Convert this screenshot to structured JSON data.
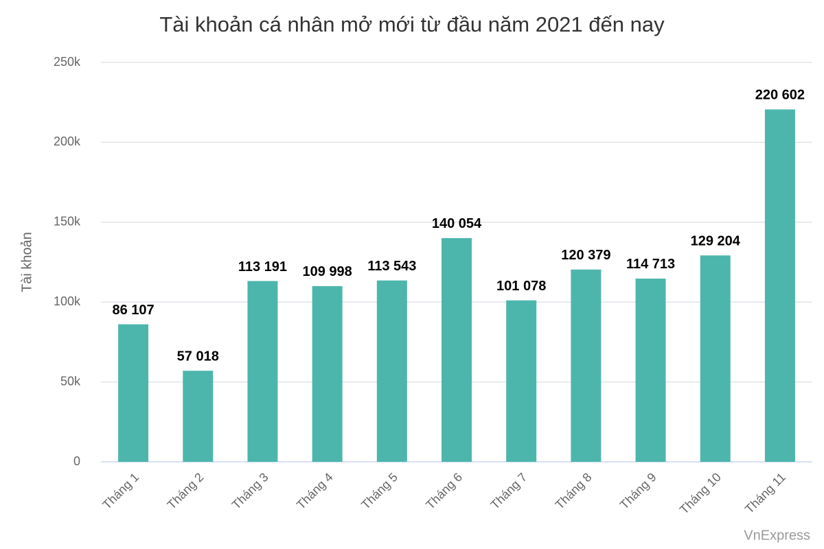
{
  "chart_data": {
    "type": "bar",
    "title": "Tài khoản cá nhân mở mới từ đầu năm 2021 đến nay",
    "y_label": "Tài khoản",
    "credit": "VnExpress",
    "categories": [
      "Tháng 1",
      "Tháng 2",
      "Tháng 3",
      "Tháng 4",
      "Tháng 5",
      "Tháng 6",
      "Tháng 7",
      "Tháng 8",
      "Tháng 9",
      "Tháng 10",
      "Tháng 11"
    ],
    "values": [
      86107,
      57018,
      113191,
      109998,
      113543,
      140054,
      101078,
      120379,
      114713,
      129204,
      220602
    ],
    "value_labels": [
      "86 107",
      "57 018",
      "113 191",
      "109 998",
      "113 543",
      "140 054",
      "101 078",
      "120 379",
      "114 713",
      "129 204",
      "220 602"
    ],
    "color": "#4db6ac",
    "ylim": [
      0,
      250000
    ],
    "yticks": [
      0,
      {
        "value": 50000,
        "label": "50k"
      },
      {
        "value": 100000,
        "label": "100k"
      },
      {
        "value": 150000,
        "label": "150k"
      },
      {
        "value": 200000,
        "label": "200k"
      },
      {
        "value": 250000,
        "label": "250k"
      }
    ],
    "grid": true
  }
}
